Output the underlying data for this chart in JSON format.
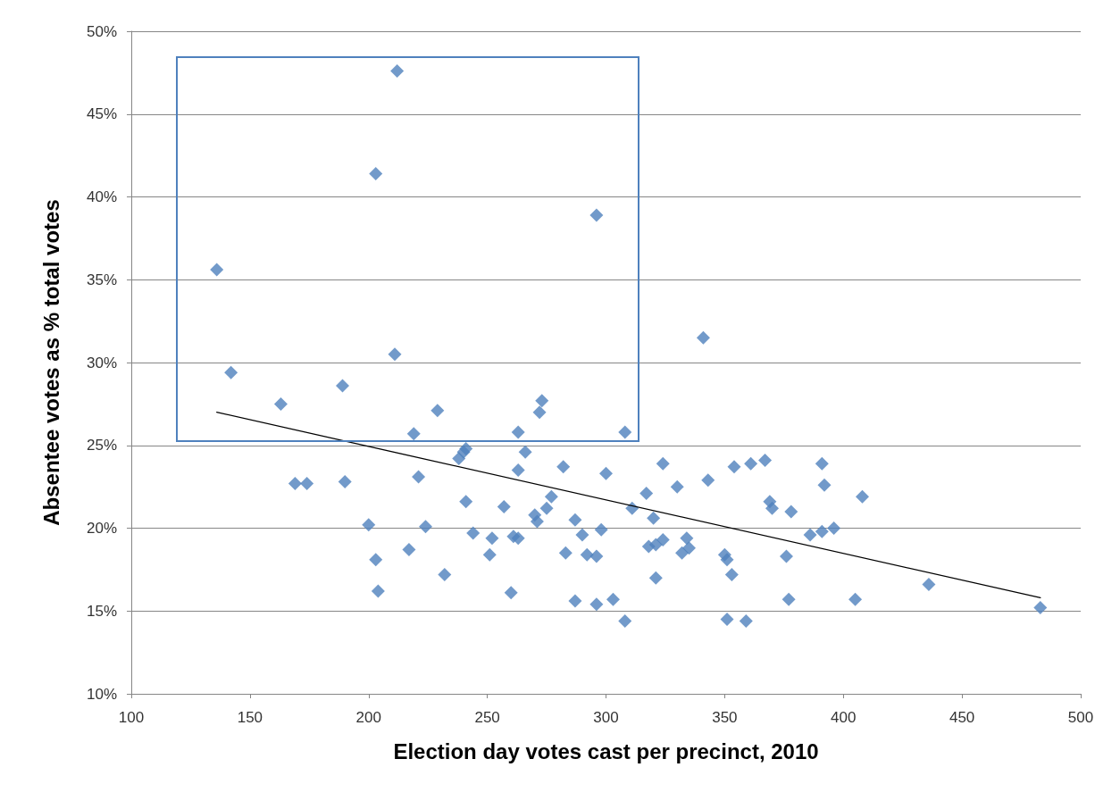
{
  "chart_data": {
    "type": "scatter",
    "xlabel": "Election day votes cast per precinct, 2010",
    "ylabel": "Absentee votes as % total votes",
    "xlim": [
      100,
      500
    ],
    "xticks": [
      100,
      150,
      200,
      250,
      300,
      350,
      400,
      450,
      500
    ],
    "ylim": [
      10,
      50
    ],
    "yticks": [
      {
        "value": 10,
        "label": "10%"
      },
      {
        "value": 15,
        "label": "15%"
      },
      {
        "value": 20,
        "label": "20%"
      },
      {
        "value": 25,
        "label": "25%"
      },
      {
        "value": 30,
        "label": "30%"
      },
      {
        "value": 35,
        "label": "35%"
      },
      {
        "value": 40,
        "label": "40%"
      },
      {
        "value": 45,
        "label": "45%"
      },
      {
        "value": 50,
        "label": "50%"
      }
    ],
    "grid": "y",
    "marker": "diamond",
    "series": [
      {
        "type": "scatter",
        "color": "#4f81bd",
        "x": [
          136,
          142,
          163,
          169,
          174,
          189,
          190,
          200,
          203,
          203,
          204,
          212,
          211,
          217,
          219,
          221,
          224,
          229,
          232,
          238,
          240,
          241,
          241,
          244,
          251,
          252,
          257,
          260,
          261,
          263,
          263,
          263,
          266,
          270,
          271,
          273,
          272,
          275,
          277,
          282,
          283,
          287,
          287,
          290,
          292,
          296,
          296,
          296,
          298,
          300,
          303,
          308,
          308,
          311,
          317,
          318,
          320,
          321,
          321,
          324,
          324,
          330,
          332,
          334,
          335,
          341,
          343,
          350,
          351,
          351,
          353,
          354,
          359,
          361,
          367,
          369,
          370,
          376,
          377,
          378,
          386,
          391,
          391,
          392,
          396,
          405,
          408,
          436,
          483
        ],
        "values": [
          35.6,
          29.4,
          27.5,
          22.7,
          22.7,
          28.6,
          22.8,
          20.2,
          41.4,
          18.1,
          16.2,
          47.6,
          30.5,
          18.7,
          25.7,
          23.1,
          20.1,
          27.1,
          17.2,
          24.2,
          24.6,
          24.8,
          21.6,
          19.7,
          18.4,
          19.4,
          21.3,
          16.1,
          19.5,
          19.4,
          25.8,
          23.5,
          24.6,
          20.8,
          20.4,
          27.7,
          27.0,
          21.2,
          21.9,
          23.7,
          18.5,
          20.5,
          15.6,
          19.6,
          18.4,
          15.4,
          18.3,
          38.9,
          19.9,
          23.3,
          15.7,
          14.4,
          25.8,
          21.2,
          22.1,
          18.9,
          20.6,
          17.0,
          19.0,
          19.3,
          23.9,
          22.5,
          18.5,
          19.4,
          18.8,
          31.5,
          22.9,
          18.4,
          18.1,
          14.5,
          17.2,
          23.7,
          14.4,
          23.9,
          24.1,
          21.6,
          21.2,
          18.3,
          15.7,
          21.0,
          19.6,
          19.8,
          23.9,
          22.6,
          20.0,
          15.7,
          21.9,
          16.6,
          15.2
        ]
      },
      {
        "type": "line",
        "color": "#000000",
        "marker": "none",
        "x": [
          136,
          483
        ],
        "values": [
          27.0,
          15.8
        ]
      }
    ]
  }
}
